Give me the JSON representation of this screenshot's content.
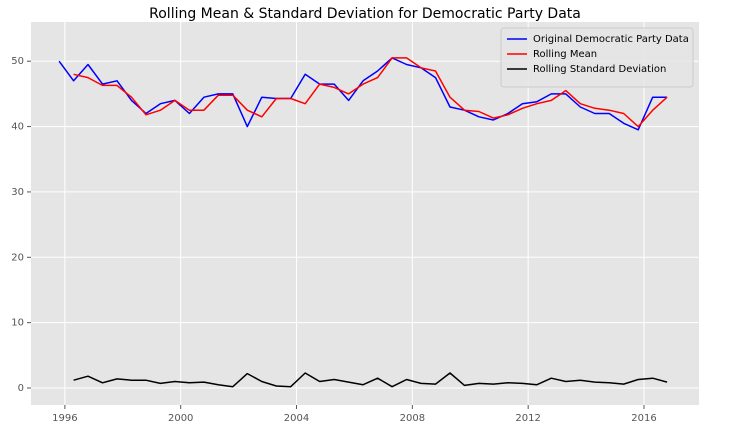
{
  "chart_data": {
    "type": "line",
    "title": "Rolling Mean & Standard Deviation for Democratic Party Data",
    "x": [
      1995.8,
      1996.3,
      1996.8,
      1997.3,
      1997.8,
      1998.3,
      1998.8,
      1999.3,
      1999.8,
      2000.3,
      2000.8,
      2001.3,
      2001.8,
      2002.3,
      2002.8,
      2003.3,
      2003.8,
      2004.3,
      2004.8,
      2005.3,
      2005.8,
      2006.3,
      2006.8,
      2007.3,
      2007.8,
      2008.3,
      2008.8,
      2009.3,
      2009.8,
      2010.3,
      2010.8,
      2011.3,
      2011.8,
      2012.3,
      2012.8,
      2013.3,
      2013.8,
      2014.3,
      2014.8,
      2015.3,
      2015.8,
      2016.3,
      2016.8
    ],
    "series": [
      {
        "name": "Original Democratic Party Data",
        "color": "#0000ff",
        "values": [
          50,
          47,
          49.5,
          46.5,
          47,
          44,
          42,
          43.5,
          44,
          42,
          44.5,
          45,
          45,
          40,
          44.5,
          44.3,
          44.3,
          48,
          46.5,
          46.5,
          44,
          47,
          48.5,
          50.5,
          49.5,
          49,
          47.5,
          43,
          42.5,
          41.5,
          41,
          42,
          43.5,
          43.8,
          45,
          45,
          43,
          42,
          42,
          40.5,
          39.5,
          44.5,
          44.5
        ]
      },
      {
        "name": "Rolling Mean",
        "color": "#ff0000",
        "values": [
          null,
          48,
          47.5,
          46.3,
          46.3,
          44.5,
          41.8,
          42.5,
          44,
          42.5,
          42.5,
          44.8,
          44.8,
          42.5,
          41.5,
          44.3,
          44.3,
          43.5,
          46.5,
          46,
          45,
          46.5,
          47.5,
          50.5,
          50.5,
          49,
          48.5,
          44.5,
          42.5,
          42.3,
          41.3,
          41.8,
          42.8,
          43.5,
          44,
          45.5,
          43.5,
          42.8,
          42.5,
          42,
          40,
          42.5,
          44.5
        ]
      },
      {
        "name": "Rolling Standard Deviation",
        "color": "#000000",
        "values": [
          null,
          1.2,
          1.8,
          0.8,
          1.4,
          1.2,
          1.2,
          0.7,
          1.0,
          0.8,
          0.9,
          0.5,
          0.2,
          2.2,
          1.0,
          0.3,
          0.2,
          2.3,
          1.0,
          1.3,
          0.9,
          0.5,
          1.5,
          0.2,
          1.3,
          0.7,
          0.6,
          2.3,
          0.4,
          0.7,
          0.6,
          0.8,
          0.7,
          0.5,
          1.5,
          1.0,
          1.2,
          0.9,
          0.8,
          0.6,
          1.3,
          1.5,
          0.9
        ]
      }
    ],
    "xlim": [
      1994.83,
      2017.9
    ],
    "xticks": [
      1996,
      2000,
      2004,
      2008,
      2012,
      2016
    ],
    "ylim": [
      -2.6,
      56
    ],
    "yticks": [
      0,
      10,
      20,
      30,
      40,
      50
    ],
    "grid": true,
    "legend": "upper right"
  }
}
